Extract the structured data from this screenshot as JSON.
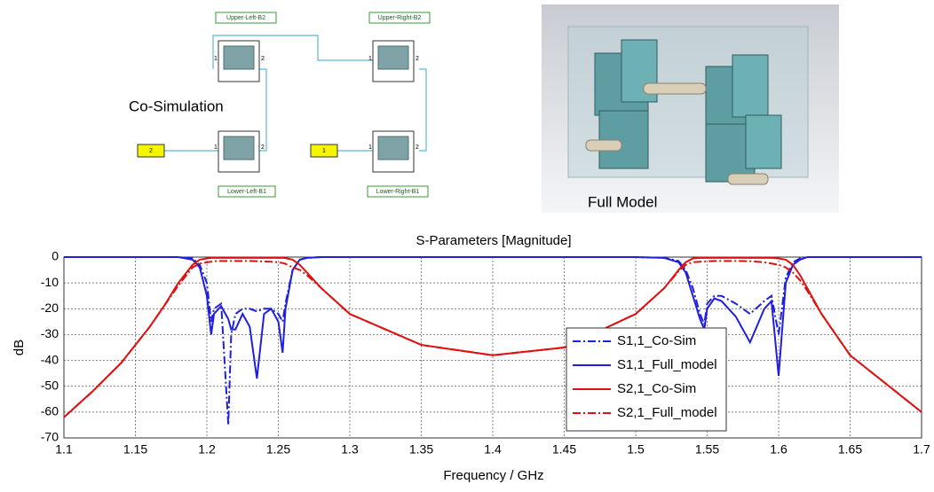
{
  "schematic": {
    "title": "Co-Simulation",
    "blocks": [
      {
        "label": "Upper-Left-B2",
        "pins": [
          "1",
          "2"
        ]
      },
      {
        "label": "Upper-Right-B2",
        "pins": [
          "1",
          "2"
        ]
      },
      {
        "label": "Lower-Left-B1",
        "pins": [
          "1",
          "2"
        ]
      },
      {
        "label": "Lower-Right-B1",
        "pins": [
          "1",
          "2"
        ]
      }
    ],
    "ports": [
      "2",
      "1"
    ]
  },
  "model": {
    "label": "Full Model"
  },
  "chart_data": {
    "type": "line",
    "title": "S-Parameters [Magnitude]",
    "x_label": "Frequency / GHz",
    "y_label": "dB",
    "xlim": [
      1.1,
      1.7
    ],
    "xticks": [
      1.1,
      1.15,
      1.2,
      1.25,
      1.3,
      1.35,
      1.4,
      1.45,
      1.5,
      1.55,
      1.6,
      1.65,
      1.7
    ],
    "ylim": [
      -70,
      0
    ],
    "yticks": [
      0,
      -10,
      -20,
      -30,
      -40,
      -50,
      -60,
      -70
    ],
    "grid": true,
    "legend": "center-right",
    "x": [
      1.1,
      1.12,
      1.14,
      1.16,
      1.17,
      1.18,
      1.19,
      1.195,
      1.2,
      1.203,
      1.205,
      1.21,
      1.215,
      1.217,
      1.22,
      1.225,
      1.23,
      1.235,
      1.24,
      1.245,
      1.25,
      1.253,
      1.255,
      1.26,
      1.265,
      1.27,
      1.28,
      1.3,
      1.35,
      1.4,
      1.45,
      1.5,
      1.52,
      1.53,
      1.535,
      1.54,
      1.545,
      1.548,
      1.55,
      1.555,
      1.56,
      1.57,
      1.58,
      1.59,
      1.595,
      1.6,
      1.605,
      1.61,
      1.615,
      1.62,
      1.63,
      1.65,
      1.7
    ],
    "series": [
      {
        "name": "S1,1_Co-Sim",
        "color": "#1f1fe0",
        "style": "dashdot",
        "values": [
          0,
          0,
          0,
          0,
          0,
          0,
          -0.5,
          -3,
          -10,
          -25,
          -20,
          -18,
          -65,
          -30,
          -22,
          -20,
          -20,
          -21,
          -20,
          -20,
          -22,
          -25,
          -18,
          -5,
          -1,
          -0.3,
          0,
          0,
          0,
          0,
          0,
          0,
          -0.3,
          -1.5,
          -5,
          -12,
          -22,
          -26,
          -18,
          -15,
          -15,
          -18,
          -22,
          -17,
          -15,
          -30,
          -8,
          -2,
          -0.5,
          0,
          0,
          0,
          0
        ]
      },
      {
        "name": "S1,1_Full_model",
        "color": "#1f1fe0",
        "style": "solid",
        "values": [
          0,
          0,
          0,
          0,
          0,
          0,
          -1,
          -4,
          -15,
          -30,
          -22,
          -19,
          -24,
          -28,
          -28,
          -22,
          -27,
          -47,
          -22,
          -20,
          -25,
          -37,
          -20,
          -5,
          -1,
          -0.3,
          0,
          0,
          0,
          0,
          0,
          0,
          -0.3,
          -2,
          -6,
          -15,
          -24,
          -28,
          -20,
          -16,
          -17,
          -23,
          -33,
          -20,
          -17,
          -46,
          -10,
          -3,
          -1,
          0,
          0,
          0,
          0
        ]
      },
      {
        "name": "S2,1_Co-Sim",
        "color": "#e01010",
        "style": "solid",
        "values": [
          -62,
          -52,
          -41,
          -27,
          -19,
          -10,
          -3,
          -1,
          -0.5,
          -0.3,
          -0.3,
          -0.3,
          -0.3,
          -0.3,
          -0.3,
          -0.3,
          -0.3,
          -0.3,
          -0.3,
          -0.3,
          -0.3,
          -0.3,
          -0.4,
          -1,
          -3,
          -6,
          -12,
          -22,
          -34,
          -38,
          -35,
          -22,
          -12,
          -5,
          -2,
          -0.5,
          -0.3,
          -0.3,
          -0.3,
          -0.3,
          -0.3,
          -0.3,
          -0.3,
          -0.3,
          -0.3,
          -0.5,
          -1,
          -3,
          -7,
          -12,
          -22,
          -38,
          -60
        ]
      },
      {
        "name": "S2,1_Full_model",
        "color": "#e01010",
        "style": "dashdot",
        "values": [
          -62,
          -52,
          -41,
          -27,
          -19,
          -11,
          -4,
          -2.5,
          -2,
          -1.8,
          -1.6,
          -1.5,
          -1.5,
          -1.5,
          -1.5,
          -1.5,
          -1.5,
          -1.6,
          -1.7,
          -1.8,
          -2,
          -2.3,
          -2.6,
          -4,
          -5,
          -7,
          -12,
          -22,
          -34,
          -38,
          -35,
          -22,
          -12,
          -5.5,
          -3,
          -2,
          -1.8,
          -1.7,
          -1.6,
          -1.5,
          -1.5,
          -1.5,
          -1.6,
          -2,
          -2.5,
          -3,
          -4,
          -6,
          -9,
          -13,
          -22,
          -38,
          -60
        ]
      }
    ]
  }
}
